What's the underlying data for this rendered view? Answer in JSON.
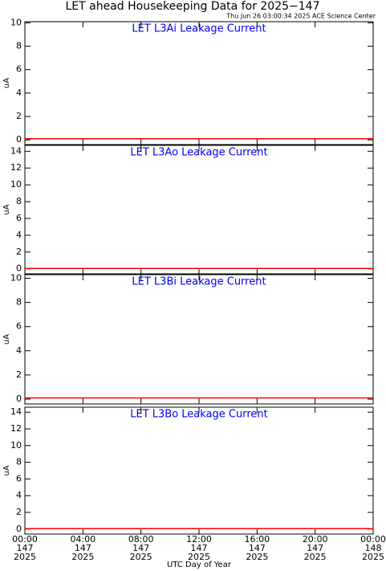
{
  "title": "LET ahead Housekeeping Data for 2025−147",
  "subtitle": "Thu Jun 26 03:00:34 2025 ACE Science Center",
  "xlabel": "UTC Day of Year",
  "chart_data": [
    {
      "type": "line",
      "title": "LET L3Ai Leakage Current",
      "ylabel": "uA",
      "ylim": [
        -0.4,
        10.1
      ],
      "yticks": [
        0,
        2,
        4,
        6,
        8,
        10
      ],
      "xlim": [
        0,
        24
      ],
      "x": [
        0,
        24
      ],
      "series": [
        {
          "color": "#ff0000",
          "values": [
            0.1,
            0.1
          ]
        }
      ]
    },
    {
      "type": "line",
      "title": "LET L3Ao Leakage Current",
      "ylabel": "uA",
      "ylim": [
        -0.6,
        14.7
      ],
      "yticks": [
        0,
        2,
        4,
        6,
        8,
        10,
        12,
        14
      ],
      "xlim": [
        0,
        24
      ],
      "x": [
        0,
        24
      ],
      "series": [
        {
          "color": "#ff0000",
          "values": [
            0.05,
            0.05
          ]
        }
      ]
    },
    {
      "type": "line",
      "title": "LET L3Bi Leakage Current",
      "ylabel": "uA",
      "ylim": [
        -0.4,
        10.3
      ],
      "yticks": [
        0,
        2,
        4,
        6,
        8,
        10
      ],
      "xlim": [
        0,
        24
      ],
      "x": [
        0,
        24
      ],
      "series": [
        {
          "color": "#ff0000",
          "values": [
            0.1,
            0.1
          ]
        }
      ]
    },
    {
      "type": "line",
      "title": "LET L3Bo Leakage Current",
      "ylabel": "uA",
      "ylim": [
        -0.6,
        14.6
      ],
      "yticks": [
        0,
        2,
        4,
        6,
        8,
        10,
        12,
        14
      ],
      "xlim": [
        0,
        24
      ],
      "x": [
        0,
        24
      ],
      "series": [
        {
          "color": "#ff0000",
          "values": [
            0.05,
            0.05
          ]
        }
      ],
      "xticks": [
        {
          "value": 0,
          "label": [
            "00:00",
            "147",
            "2025"
          ]
        },
        {
          "value": 4,
          "label": [
            "04:00",
            "147",
            "2025"
          ]
        },
        {
          "value": 8,
          "label": [
            "08:00",
            "147",
            "2025"
          ]
        },
        {
          "value": 12,
          "label": [
            "12:00",
            "147",
            "2025"
          ]
        },
        {
          "value": 16,
          "label": [
            "16:00",
            "147",
            "2025"
          ]
        },
        {
          "value": 20,
          "label": [
            "20:00",
            "147",
            "2025"
          ]
        },
        {
          "value": 24,
          "label": [
            "00:00",
            "148",
            "2025"
          ]
        }
      ]
    }
  ]
}
